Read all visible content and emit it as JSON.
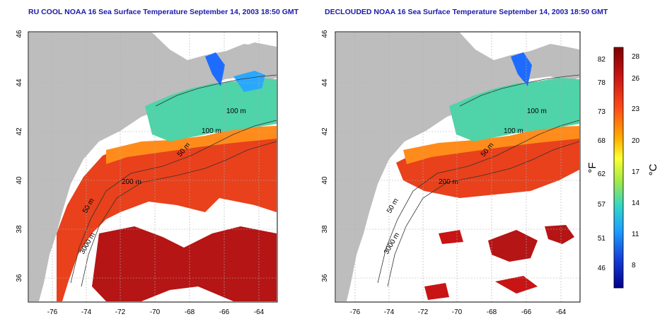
{
  "panels": [
    {
      "title": "RU COOL NOAA 16 Sea Surface Temperature September 14, 2003 18:50 GMT",
      "contours": [
        "100 m",
        "100 m",
        "50 m",
        "200 m",
        "50 m",
        "3000 m"
      ]
    },
    {
      "title": "DECLOUDED NOAA 16 Sea Surface Temperature September 14, 2003 18:50 GMT",
      "contours": [
        "100 m",
        "100 m",
        "50 m",
        "200 m",
        "50 m",
        "3000 m"
      ]
    }
  ],
  "axes": {
    "x_ticks": [
      "-76",
      "-74",
      "-72",
      "-70",
      "-68",
      "-66",
      "-64"
    ],
    "y_ticks": [
      "46",
      "44",
      "42",
      "40",
      "38",
      "36"
    ]
  },
  "colorbar": {
    "fahrenheit_ticks": [
      "82",
      "78",
      "73",
      "68",
      "62",
      "57",
      "51",
      "46"
    ],
    "celsius_ticks": [
      "28",
      "26",
      "23",
      "20",
      "17",
      "14",
      "11",
      "8"
    ],
    "fahrenheit_unit": "°F",
    "celsius_unit": "°C"
  },
  "colors": {
    "land": "#bdbdbd",
    "title": "#1a1aa8",
    "grid": "#b0b0b0"
  }
}
